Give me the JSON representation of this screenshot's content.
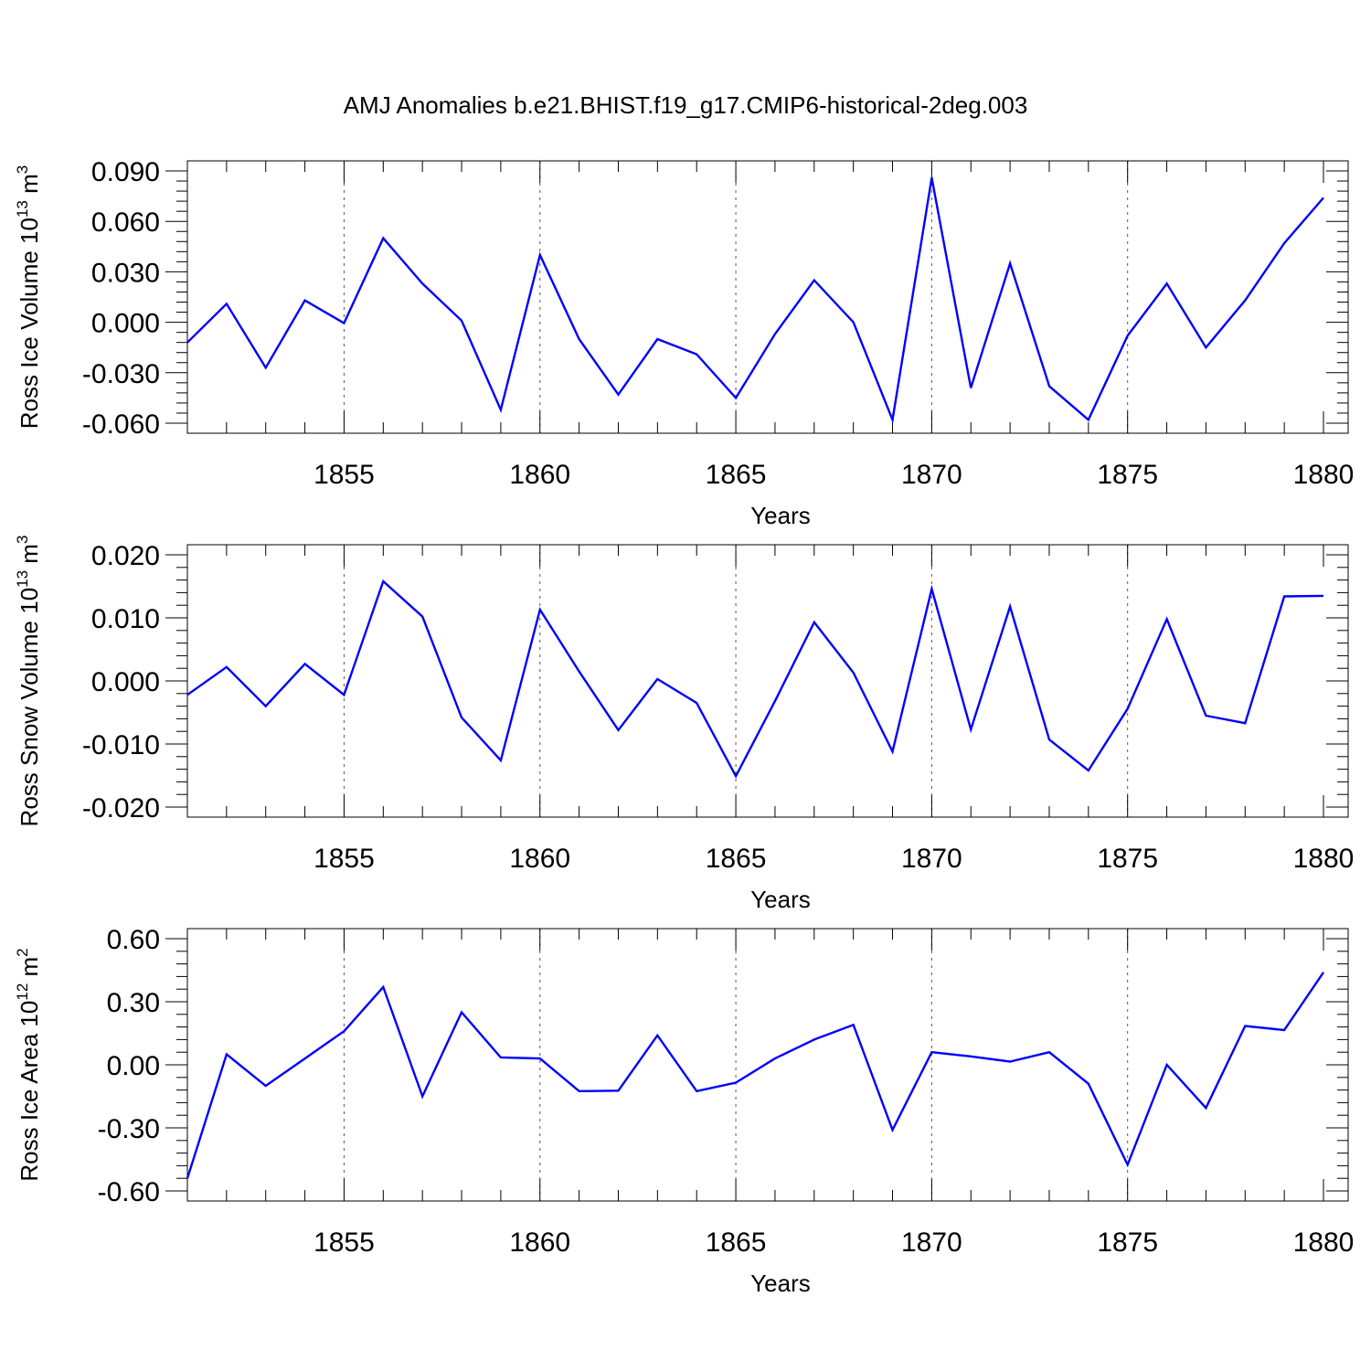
{
  "title": "AMJ Anomalies b.e21.BHIST.f19_g17.CMIP6-historical-2deg.003",
  "x_label": "Years",
  "line_color": "#0000ff",
  "chart_data": [
    {
      "type": "line",
      "ylabel": "Ross Ice Volume 10",
      "ylabel_exp": "13",
      "ylabel_unit": " m",
      "ylabel_unit_exp": "3",
      "xlabel": "Years",
      "xlim": [
        1851,
        1880
      ],
      "x_ticks": [
        1855,
        1860,
        1865,
        1870,
        1875,
        1880
      ],
      "ylim": [
        -0.06,
        0.09
      ],
      "y_ticks": [
        -0.06,
        -0.03,
        0.0,
        0.03,
        0.06,
        0.09
      ],
      "y_tick_labels": [
        "-0.060",
        "-0.030",
        "0.000",
        "0.030",
        "0.060",
        "0.090"
      ],
      "grid": "dashed vertical at major x ticks",
      "x": [
        1851,
        1852,
        1853,
        1854,
        1855,
        1856,
        1857,
        1858,
        1859,
        1860,
        1861,
        1862,
        1863,
        1864,
        1865,
        1866,
        1867,
        1868,
        1869,
        1870,
        1871,
        1872,
        1873,
        1874,
        1875,
        1876,
        1877,
        1878,
        1879,
        1880
      ],
      "values": [
        -0.012,
        0.011,
        -0.027,
        0.013,
        -0.0005,
        0.05,
        0.023,
        0.001,
        -0.052,
        0.04,
        -0.01,
        -0.043,
        -0.01,
        -0.019,
        -0.045,
        -0.007,
        0.025,
        0.0,
        -0.058,
        0.086,
        -0.039,
        0.035,
        -0.038,
        -0.058,
        -0.008,
        0.023,
        -0.015,
        0.013,
        0.047,
        0.074
      ]
    },
    {
      "type": "line",
      "ylabel": "Ross Snow Volume 10",
      "ylabel_exp": "13",
      "ylabel_unit": " m",
      "ylabel_unit_exp": "3",
      "xlabel": "Years",
      "xlim": [
        1851,
        1880
      ],
      "x_ticks": [
        1855,
        1860,
        1865,
        1870,
        1875,
        1880
      ],
      "ylim": [
        -0.02,
        0.02
      ],
      "y_ticks": [
        -0.02,
        -0.01,
        0.0,
        0.01,
        0.02
      ],
      "y_tick_labels": [
        "-0.020",
        "-0.010",
        "0.000",
        "0.010",
        "0.020"
      ],
      "grid": "dashed vertical at major x ticks",
      "x": [
        1851,
        1852,
        1853,
        1854,
        1855,
        1856,
        1857,
        1858,
        1859,
        1860,
        1861,
        1862,
        1863,
        1864,
        1865,
        1866,
        1867,
        1868,
        1869,
        1870,
        1871,
        1872,
        1873,
        1874,
        1875,
        1876,
        1877,
        1878,
        1879,
        1880
      ],
      "values": [
        -0.0022,
        0.0022,
        -0.004,
        0.0027,
        -0.0022,
        0.0158,
        0.0102,
        -0.0058,
        -0.0126,
        0.0113,
        0.0015,
        -0.0078,
        0.0003,
        -0.0035,
        -0.0151,
        -0.0032,
        0.0093,
        0.0013,
        -0.0112,
        0.0146,
        -0.0077,
        0.0118,
        -0.0093,
        -0.0142,
        -0.0044,
        0.0098,
        -0.0055,
        -0.0067,
        0.0134,
        0.0135
      ]
    },
    {
      "type": "line",
      "ylabel": "Ross Ice Area 10",
      "ylabel_exp": "12",
      "ylabel_unit": " m",
      "ylabel_unit_exp": "2",
      "xlabel": "Years",
      "xlim": [
        1851,
        1880
      ],
      "x_ticks": [
        1855,
        1860,
        1865,
        1870,
        1875,
        1880
      ],
      "ylim": [
        -0.6,
        0.6
      ],
      "y_ticks": [
        -0.6,
        -0.3,
        0.0,
        0.3,
        0.6
      ],
      "y_tick_labels": [
        "-0.60",
        "-0.30",
        "0.00",
        "0.30",
        "0.60"
      ],
      "grid": "dashed vertical at major x ticks",
      "x": [
        1851,
        1852,
        1853,
        1854,
        1855,
        1856,
        1857,
        1858,
        1859,
        1860,
        1861,
        1862,
        1863,
        1864,
        1865,
        1866,
        1867,
        1868,
        1869,
        1870,
        1871,
        1872,
        1873,
        1874,
        1875,
        1876,
        1877,
        1878,
        1879,
        1880
      ],
      "values": [
        -0.54,
        0.05,
        -0.1,
        0.03,
        0.16,
        0.37,
        -0.15,
        0.25,
        0.035,
        0.03,
        -0.125,
        -0.123,
        0.14,
        -0.125,
        -0.085,
        0.03,
        0.12,
        0.19,
        -0.31,
        0.06,
        0.04,
        0.015,
        0.06,
        -0.09,
        -0.475,
        0.0,
        -0.205,
        0.185,
        0.165,
        0.44
      ]
    }
  ]
}
